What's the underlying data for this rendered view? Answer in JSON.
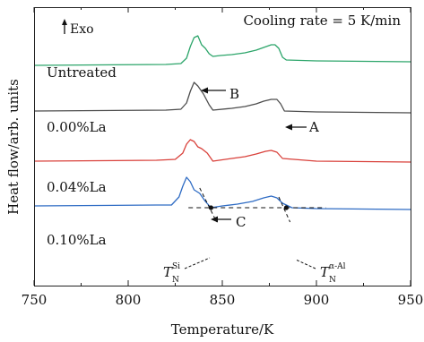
{
  "chart_data": {
    "type": "line",
    "xlabel": "Temperature/K",
    "ylabel": "Heat flow/arb. units",
    "xlim": [
      750,
      950
    ],
    "xticks": [
      750,
      800,
      850,
      900,
      950
    ],
    "y_ticks_shown": false,
    "grid": false,
    "exo_label": "Exo",
    "rate_label": "Cooling rate = 5 K/min",
    "series": [
      {
        "name": "Untreated",
        "color": "#2ca56a",
        "points": [
          [
            750,
            33
          ],
          [
            820,
            32
          ],
          [
            828,
            31
          ],
          [
            831,
            25
          ],
          [
            833,
            12
          ],
          [
            835,
            2
          ],
          [
            837,
            0
          ],
          [
            839,
            10
          ],
          [
            841,
            14
          ],
          [
            843,
            20
          ],
          [
            845,
            23
          ],
          [
            849,
            22
          ],
          [
            855,
            21
          ],
          [
            862,
            19
          ],
          [
            868,
            16
          ],
          [
            872,
            13
          ],
          [
            876,
            10
          ],
          [
            878,
            10
          ],
          [
            880,
            14
          ],
          [
            882,
            24
          ],
          [
            884,
            27
          ],
          [
            900,
            28
          ],
          [
            950,
            29
          ]
        ]
      },
      {
        "name": "0.00%La",
        "color": "#4d4d4d",
        "points": [
          [
            750,
            84
          ],
          [
            820,
            83
          ],
          [
            828,
            82
          ],
          [
            831,
            75
          ],
          [
            833,
            62
          ],
          [
            835,
            52
          ],
          [
            837,
            56
          ],
          [
            840,
            65
          ],
          [
            843,
            77
          ],
          [
            845,
            83
          ],
          [
            855,
            81
          ],
          [
            862,
            79
          ],
          [
            868,
            76
          ],
          [
            872,
            73
          ],
          [
            876,
            71
          ],
          [
            879,
            71
          ],
          [
            881,
            76
          ],
          [
            883,
            84
          ],
          [
            900,
            85
          ],
          [
            950,
            86
          ]
        ]
      },
      {
        "name": "0.04%La",
        "color": "#d9413b",
        "points": [
          [
            750,
            140
          ],
          [
            815,
            139
          ],
          [
            825,
            138
          ],
          [
            829,
            131
          ],
          [
            831,
            121
          ],
          [
            833,
            116
          ],
          [
            835,
            118
          ],
          [
            837,
            124
          ],
          [
            839,
            126
          ],
          [
            842,
            131
          ],
          [
            845,
            140
          ],
          [
            855,
            137
          ],
          [
            862,
            135
          ],
          [
            868,
            132
          ],
          [
            873,
            129
          ],
          [
            876,
            128
          ],
          [
            879,
            130
          ],
          [
            882,
            137
          ],
          [
            900,
            140
          ],
          [
            950,
            141
          ]
        ]
      },
      {
        "name": "0.10%La",
        "color": "#2f6cc4",
        "points": [
          [
            750,
            190
          ],
          [
            815,
            189
          ],
          [
            823,
            189
          ],
          [
            827,
            180
          ],
          [
            829,
            168
          ],
          [
            831,
            158
          ],
          [
            833,
            163
          ],
          [
            835,
            172
          ],
          [
            838,
            176
          ],
          [
            841,
            185
          ],
          [
            844,
            192
          ],
          [
            850,
            190
          ],
          [
            858,
            188
          ],
          [
            866,
            185
          ],
          [
            872,
            181
          ],
          [
            876,
            179
          ],
          [
            879,
            181
          ],
          [
            882,
            187
          ],
          [
            887,
            192
          ],
          [
            900,
            193
          ],
          [
            950,
            194
          ]
        ]
      }
    ],
    "annotations": [
      {
        "text": "B",
        "at": [
          835,
          52
        ],
        "direction": "arrow-from-right"
      },
      {
        "text": "A",
        "at": [
          883,
          70
        ],
        "direction": "arrow-from-right"
      },
      {
        "text": "C",
        "at": [
          839,
          178
        ],
        "direction": "arrow-from-right"
      },
      {
        "text": "T",
        "sub": "N",
        "sup": "Si",
        "at": [
          844,
          192
        ]
      },
      {
        "text": "T",
        "sub": "N",
        "sup": "α-Al",
        "at": [
          884,
          192
        ]
      }
    ],
    "baseline_dashed": [
      [
        832,
        192
      ],
      [
        905,
        192
      ]
    ],
    "tangents_dashed": [
      [
        [
          838,
          170
        ],
        [
          847,
          208
        ]
      ],
      [
        [
          880,
          180
        ],
        [
          886,
          208
        ]
      ]
    ]
  }
}
